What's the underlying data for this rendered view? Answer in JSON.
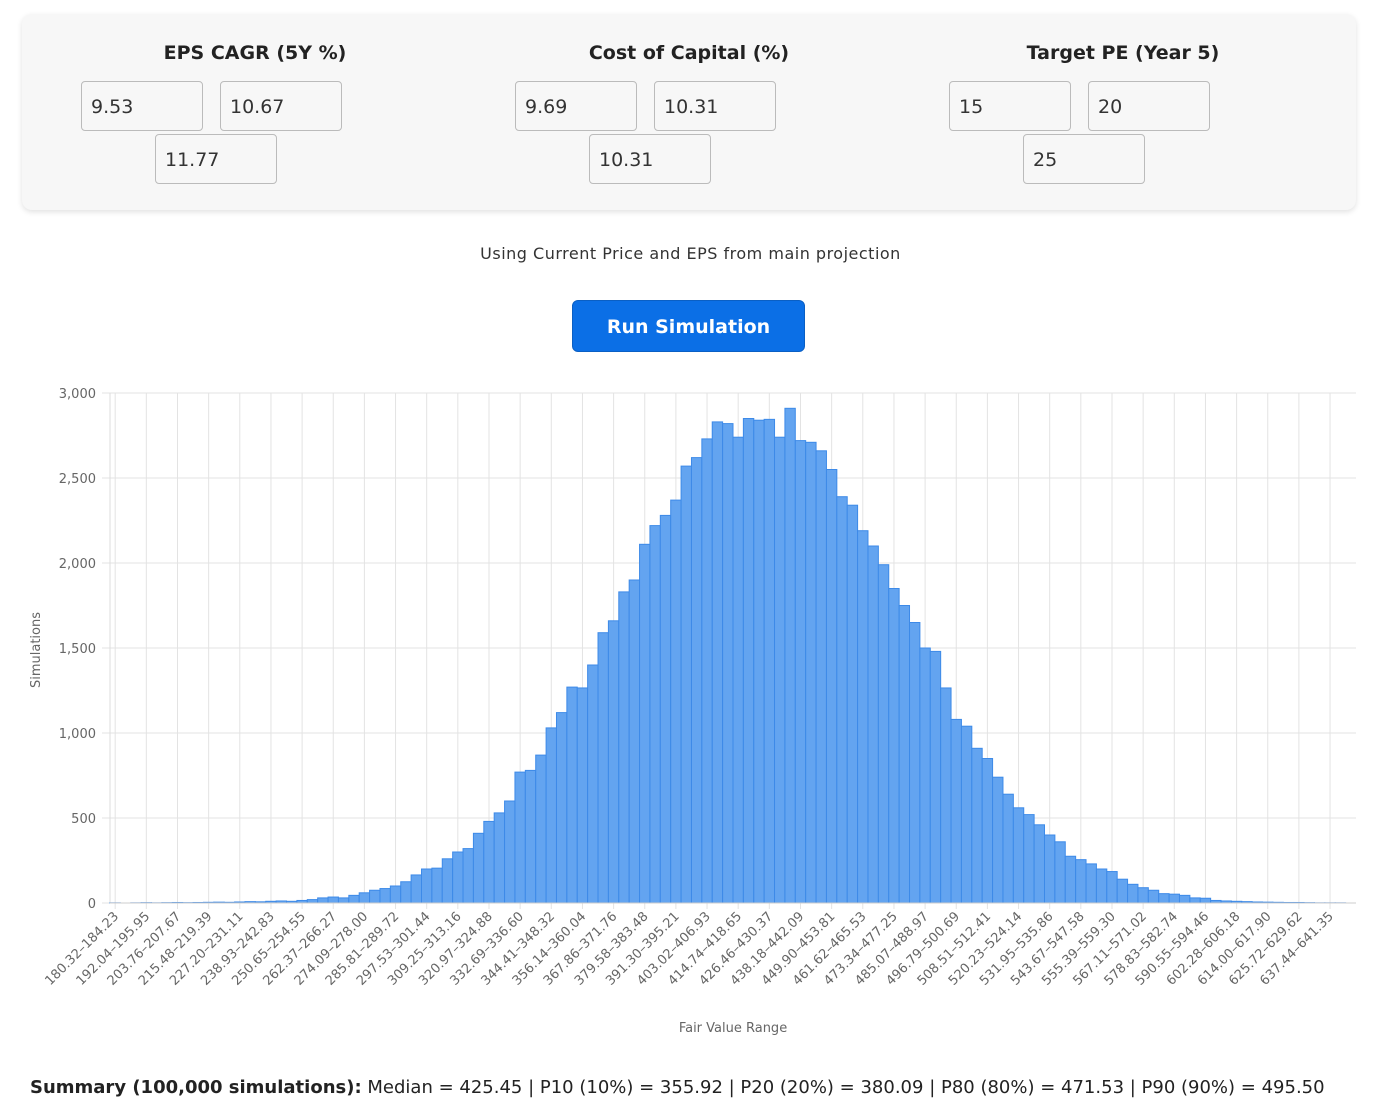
{
  "inputs": [
    {
      "label": "EPS CAGR (5Y %)",
      "values": [
        "9.53",
        "10.67",
        "11.77"
      ]
    },
    {
      "label": "Cost of Capital (%)",
      "values": [
        "9.69",
        "10.31",
        "10.31"
      ]
    },
    {
      "label": "Target PE (Year 5)",
      "values": [
        "15",
        "20",
        "25"
      ]
    }
  ],
  "note": "Using Current Price and EPS from main projection",
  "button": "Run Simulation",
  "chart_data": {
    "type": "histogram",
    "xlabel": "Fair Value Range",
    "ylabel": "Simulations",
    "color": "#63a4f0",
    "grid": true,
    "ylim": [
      0,
      3000
    ],
    "yticks": [
      0,
      500,
      {
        "value": 1000,
        "label": "1,000"
      },
      {
        "value": 1500,
        "label": "1,500"
      },
      {
        "value": 2000,
        "label": "2,000"
      },
      {
        "value": 2500,
        "label": "2,500"
      },
      {
        "value": 3000,
        "label": "3,000"
      }
    ],
    "categories": [
      "180.32–184.23",
      null,
      null,
      "192.04–195.95",
      null,
      null,
      "203.76–207.67",
      null,
      null,
      "215.48–219.39",
      null,
      null,
      "227.20–231.11",
      null,
      null,
      "238.93–242.83",
      null,
      null,
      "250.65–254.55",
      null,
      null,
      "262.37–266.27",
      null,
      null,
      "274.09–278.00",
      null,
      null,
      "285.81–289.72",
      null,
      null,
      "297.53–301.44",
      null,
      null,
      "309.25–313.16",
      null,
      null,
      "320.97–324.88",
      null,
      null,
      "332.69–336.60",
      null,
      null,
      "344.41–348.32",
      null,
      null,
      "356.14–360.04",
      null,
      null,
      "367.86–371.76",
      null,
      null,
      "379.58–383.48",
      null,
      null,
      "391.30–395.21",
      null,
      null,
      "403.02–406.93",
      null,
      null,
      "414.74–418.65",
      null,
      null,
      "426.46–430.37",
      null,
      null,
      "438.18–442.09",
      null,
      null,
      "449.90–453.81",
      null,
      null,
      "461.62–465.53",
      null,
      null,
      "473.34–477.25",
      null,
      null,
      "485.07–488.97",
      null,
      null,
      "496.79–500.69",
      null,
      null,
      "508.51–512.41",
      null,
      null,
      "520.23–524.14",
      null,
      null,
      "531.95–535.86",
      null,
      null,
      "543.67–547.58",
      null,
      null,
      "555.39–559.30",
      null,
      null,
      "567.11–571.02",
      null,
      null,
      "578.83–582.74",
      null,
      null,
      "590.55–594.46",
      null,
      null,
      "602.28–606.18",
      null,
      null,
      "614.00–617.90",
      null,
      null,
      "625.72–629.62",
      null,
      null,
      "637.44–641.35",
      null,
      null
    ],
    "values": [
      1,
      0,
      1,
      2,
      1,
      2,
      3,
      2,
      3,
      4,
      5,
      4,
      6,
      8,
      7,
      10,
      12,
      10,
      15,
      20,
      30,
      35,
      30,
      45,
      60,
      75,
      85,
      100,
      125,
      165,
      200,
      205,
      260,
      300,
      320,
      410,
      480,
      530,
      600,
      770,
      780,
      870,
      1030,
      1120,
      1270,
      1265,
      1400,
      1590,
      1660,
      1830,
      1900,
      2110,
      2220,
      2280,
      2370,
      2570,
      2620,
      2730,
      2830,
      2820,
      2740,
      2850,
      2840,
      2845,
      2740,
      2910,
      2720,
      2710,
      2660,
      2550,
      2390,
      2340,
      2190,
      2100,
      1990,
      1850,
      1750,
      1650,
      1500,
      1480,
      1265,
      1080,
      1040,
      910,
      850,
      740,
      640,
      560,
      520,
      460,
      400,
      360,
      275,
      255,
      230,
      200,
      185,
      140,
      110,
      90,
      75,
      55,
      52,
      45,
      30,
      28,
      15,
      12,
      10,
      8,
      6,
      5,
      4,
      3,
      3,
      2,
      1,
      1,
      1,
      0
    ]
  },
  "summary": {
    "label": "Summary (100,000 simulations):",
    "text": "Median = 425.45 | P10 (10%) = 355.92 | P20 (20%) = 380.09 | P80 (80%) = 471.53 | P90 (90%) = 495.50"
  }
}
